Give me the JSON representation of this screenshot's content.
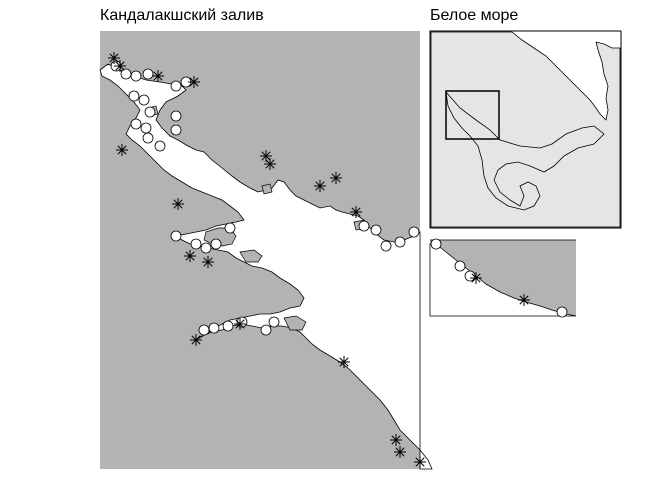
{
  "main_map": {
    "title": "Кандалакшский залив",
    "land_color": "#b3b3b3",
    "sea_color": "#ffffff"
  },
  "inset_map": {
    "title": "Белое море",
    "land_color": "#e5e5e5",
    "sea_color": "#ffffff",
    "frame": "study-area-rectangle"
  },
  "legend_symbols": {
    "circle": "open-circle-marker",
    "star": "asterisk-marker"
  }
}
